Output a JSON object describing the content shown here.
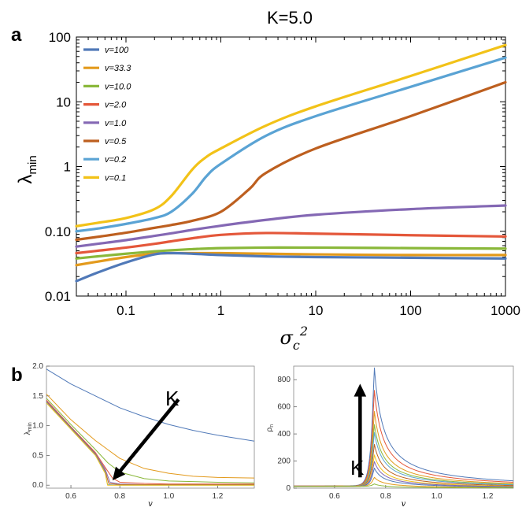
{
  "figure": {
    "title": "K=5.0",
    "panel_a_label": "a",
    "panel_b_label": "b"
  },
  "colors": {
    "v100": "#5079b8",
    "v33": "#e39a1c",
    "v10": "#8ab83a",
    "v2": "#e4573a",
    "v1": "#8468b4",
    "v05": "#bd5f1f",
    "v02": "#5aa3d4",
    "v01": "#f2c218"
  },
  "chart_data": [
    {
      "type": "line",
      "panel": "a",
      "title": "K=5.0",
      "xlabel": "σc²",
      "ylabel": "λmin",
      "xscale": "log",
      "yscale": "log",
      "xlim": [
        0.03,
        1000
      ],
      "ylim": [
        0.01,
        100
      ],
      "xticks": [
        0.1,
        1,
        10,
        100,
        1000
      ],
      "xtick_labels": [
        "0.1",
        "1",
        "10",
        "100",
        "1000"
      ],
      "yticks": [
        0.01,
        0.1,
        1,
        10,
        100
      ],
      "ytick_labels": [
        "0.01",
        "0.10",
        "1",
        "10",
        "100"
      ],
      "legend_position": "top-left",
      "grid": false,
      "series": [
        {
          "name": "v=100",
          "color_key": "v100",
          "x": [
            0.03,
            0.05,
            0.1,
            0.2,
            0.3,
            0.5,
            1,
            3,
            10,
            100,
            1000
          ],
          "y": [
            0.017,
            0.023,
            0.033,
            0.044,
            0.046,
            0.045,
            0.043,
            0.041,
            0.04,
            0.039,
            0.038
          ]
        },
        {
          "name": "v=33.3",
          "color_key": "v33",
          "x": [
            0.03,
            0.05,
            0.1,
            0.2,
            0.3,
            0.5,
            1,
            3,
            10,
            100,
            1000
          ],
          "y": [
            0.03,
            0.034,
            0.04,
            0.045,
            0.046,
            0.046,
            0.046,
            0.045,
            0.044,
            0.043,
            0.043
          ]
        },
        {
          "name": "v=10.0",
          "color_key": "v10",
          "x": [
            0.03,
            0.05,
            0.1,
            0.2,
            0.3,
            0.5,
            1,
            3,
            10,
            100,
            1000
          ],
          "y": [
            0.038,
            0.041,
            0.045,
            0.049,
            0.051,
            0.053,
            0.055,
            0.056,
            0.056,
            0.055,
            0.054
          ]
        },
        {
          "name": "v=2.0",
          "color_key": "v2",
          "x": [
            0.03,
            0.05,
            0.1,
            0.2,
            0.3,
            0.5,
            1,
            3,
            10,
            100,
            1000
          ],
          "y": [
            0.046,
            0.05,
            0.056,
            0.064,
            0.07,
            0.078,
            0.088,
            0.094,
            0.092,
            0.087,
            0.083
          ]
        },
        {
          "name": "v=1.0",
          "color_key": "v1",
          "x": [
            0.03,
            0.05,
            0.1,
            0.2,
            0.3,
            0.5,
            1,
            3,
            10,
            100,
            1000
          ],
          "y": [
            0.058,
            0.064,
            0.073,
            0.085,
            0.093,
            0.105,
            0.122,
            0.15,
            0.18,
            0.22,
            0.25
          ]
        },
        {
          "name": "v=0.5",
          "color_key": "v05",
          "x": [
            0.03,
            0.05,
            0.1,
            0.2,
            0.3,
            0.5,
            1,
            2,
            3,
            10,
            100,
            1000
          ],
          "y": [
            0.074,
            0.082,
            0.095,
            0.113,
            0.125,
            0.145,
            0.2,
            0.45,
            0.8,
            1.9,
            6,
            20
          ]
        },
        {
          "name": "v=0.2",
          "color_key": "v02",
          "x": [
            0.03,
            0.05,
            0.1,
            0.2,
            0.3,
            0.5,
            0.7,
            1,
            3,
            10,
            100,
            1000
          ],
          "y": [
            0.1,
            0.11,
            0.13,
            0.16,
            0.2,
            0.38,
            0.7,
            1.1,
            3,
            6,
            17,
            48
          ]
        },
        {
          "name": "v=0.1",
          "color_key": "v01",
          "x": [
            0.03,
            0.05,
            0.1,
            0.2,
            0.3,
            0.5,
            0.7,
            1,
            3,
            10,
            100,
            1000
          ],
          "y": [
            0.12,
            0.135,
            0.16,
            0.22,
            0.35,
            0.9,
            1.4,
            1.9,
            4.3,
            8.5,
            25,
            75
          ]
        }
      ]
    },
    {
      "type": "line",
      "panel": "b-left",
      "xlabel": "v",
      "ylabel": "λmin",
      "xlim": [
        0.5,
        1.35
      ],
      "ylim": [
        -0.05,
        2.0
      ],
      "xticks": [
        0.6,
        0.8,
        1.0,
        1.2
      ],
      "xtick_labels": [
        "0.6",
        "0.8",
        "1.0",
        "1.2"
      ],
      "yticks": [
        0.0,
        0.5,
        1.0,
        1.5,
        2.0
      ],
      "ytick_labels": [
        "0.0",
        "0.5",
        "1.0",
        "1.5",
        "2.0"
      ],
      "annotation": "K",
      "arrow": {
        "from": [
          1.04,
          1.44
        ],
        "to": [
          0.77,
          0.08
        ]
      },
      "series": [
        {
          "color_key": "v100",
          "x": [
            0.5,
            0.6,
            0.7,
            0.8,
            0.9,
            1.0,
            1.1,
            1.2,
            1.35
          ],
          "y": [
            1.95,
            1.7,
            1.5,
            1.3,
            1.15,
            1.02,
            0.92,
            0.84,
            0.74
          ]
        },
        {
          "color_key": "v33",
          "x": [
            0.5,
            0.6,
            0.7,
            0.75,
            0.8,
            0.9,
            1.0,
            1.1,
            1.2,
            1.35
          ],
          "y": [
            1.53,
            1.1,
            0.75,
            0.6,
            0.45,
            0.28,
            0.2,
            0.15,
            0.13,
            0.12
          ]
        },
        {
          "color_key": "v10",
          "x": [
            0.5,
            0.6,
            0.7,
            0.75,
            0.8,
            0.9,
            1.0,
            1.2,
            1.35
          ],
          "y": [
            1.46,
            1.02,
            0.6,
            0.38,
            0.22,
            0.11,
            0.07,
            0.05,
            0.04
          ]
        },
        {
          "color_key": "v2",
          "x": [
            0.5,
            0.6,
            0.7,
            0.74,
            0.77,
            0.8,
            0.9,
            1.0,
            1.35
          ],
          "y": [
            1.43,
            0.98,
            0.55,
            0.3,
            0.12,
            0.05,
            0.03,
            0.02,
            0.02
          ]
        },
        {
          "color_key": "v1",
          "x": [
            0.5,
            0.6,
            0.7,
            0.74,
            0.76,
            0.8,
            0.9,
            1.35
          ],
          "y": [
            1.41,
            0.97,
            0.53,
            0.27,
            0.05,
            0.02,
            0.01,
            0.01
          ]
        },
        {
          "color_key": "v05",
          "x": [
            0.5,
            0.6,
            0.7,
            0.74,
            0.755,
            0.8,
            1.35
          ],
          "y": [
            1.4,
            0.96,
            0.52,
            0.24,
            0.03,
            0.01,
            0.01
          ]
        },
        {
          "color_key": "v02",
          "x": [
            0.5,
            0.6,
            0.7,
            0.74,
            0.75,
            0.8,
            1.35
          ],
          "y": [
            1.39,
            0.95,
            0.51,
            0.22,
            0.01,
            0.0,
            0.0
          ]
        },
        {
          "color_key": "v01",
          "x": [
            0.5,
            0.6,
            0.7,
            0.74,
            0.75,
            0.8,
            1.35
          ],
          "y": [
            1.38,
            0.94,
            0.5,
            0.2,
            0.0,
            0.0,
            0.0
          ]
        }
      ]
    },
    {
      "type": "line",
      "panel": "b-right",
      "xlabel": "v",
      "ylabel": "ρn",
      "xlim": [
        0.44,
        1.3
      ],
      "ylim": [
        0,
        900
      ],
      "xticks": [
        0.6,
        0.8,
        1.0,
        1.2
      ],
      "xtick_labels": [
        "0.6",
        "0.8",
        "1.0",
        "1.2"
      ],
      "yticks": [
        0,
        200,
        400,
        600,
        800
      ],
      "ytick_labels": [
        "0",
        "200",
        "400",
        "600",
        "800"
      ],
      "annotation": "K",
      "arrow": {
        "from": [
          0.7,
          80
        ],
        "to": [
          0.7,
          770
        ]
      },
      "series": [
        {
          "color_key": "v100",
          "peak": 910
        },
        {
          "color_key": "v2",
          "peak": 740
        },
        {
          "color_key": "v33",
          "peak": 580
        },
        {
          "color_key": "v10",
          "peak": 480
        },
        {
          "color_key": "v02",
          "peak": 420
        },
        {
          "color_key": "v05",
          "peak": 330
        },
        {
          "color_key": "v01",
          "peak": 250
        },
        {
          "color_key": "v1",
          "peak": 200
        },
        {
          "color_key": "v100",
          "peak": 150
        },
        {
          "color_key": "v33",
          "peak": 80
        },
        {
          "color_key": "v10",
          "peak": 30
        }
      ]
    }
  ]
}
